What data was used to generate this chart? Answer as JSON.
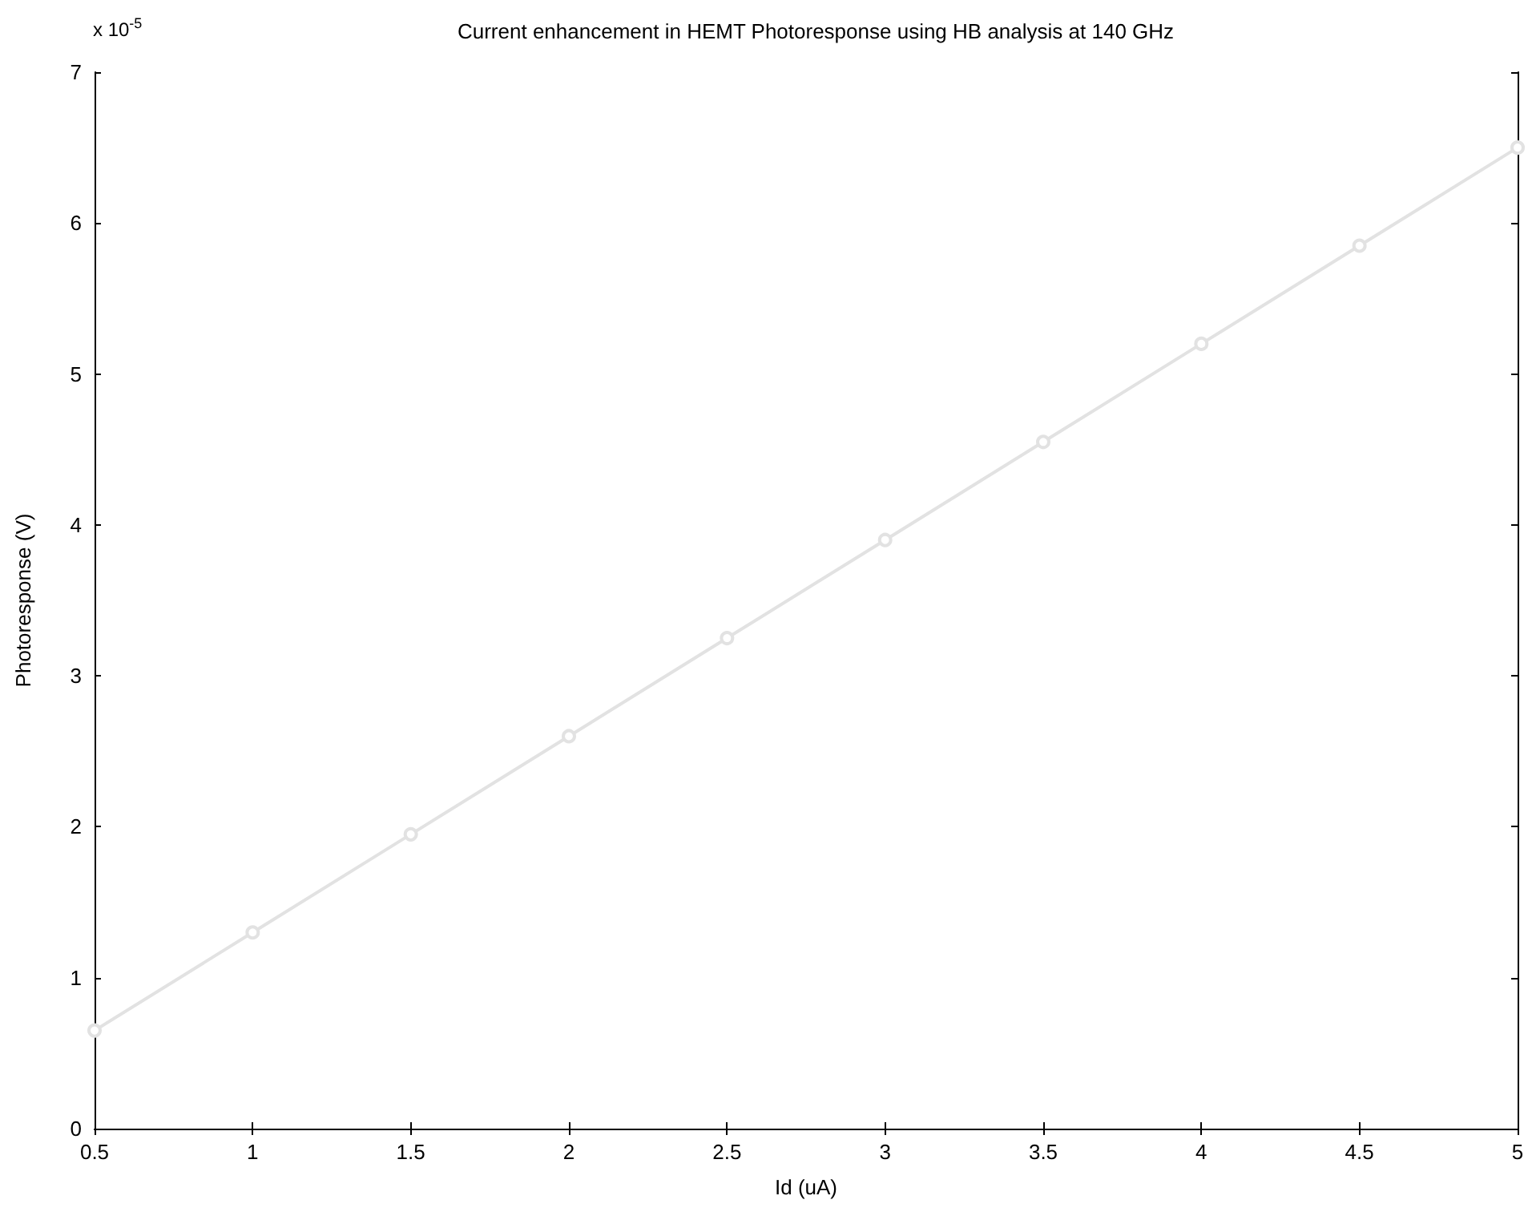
{
  "chart_data": {
    "type": "line",
    "title": "Current enhancement in HEMT Photoresponse using HB analysis at 140 GHz",
    "xlabel": "Id (uA)",
    "ylabel": "Photoresponse (V)",
    "annotations": [
      "x 10$^{-5}$"
    ],
    "x": [
      0.5,
      1,
      1.5,
      2,
      2.5,
      3,
      3.5,
      4,
      4.5,
      5
    ],
    "series": [
      {
        "color": "#e2e2e2",
        "values": [
          0.65,
          1.3,
          1.95,
          2.6,
          3.25,
          3.9,
          4.55,
          5.2,
          5.85,
          6.5
        ]
      }
    ],
    "xlim": [
      0.5,
      5
    ],
    "xticks": [
      0.5,
      1,
      1.5,
      2,
      2.5,
      3,
      3.5,
      4,
      4.5,
      5
    ],
    "ylim": [
      0,
      7
    ],
    "yticks": [
      0,
      1,
      2,
      3,
      4,
      5,
      6,
      7
    ],
    "grid": false,
    "marker": "circle",
    "line_style": "solid"
  }
}
